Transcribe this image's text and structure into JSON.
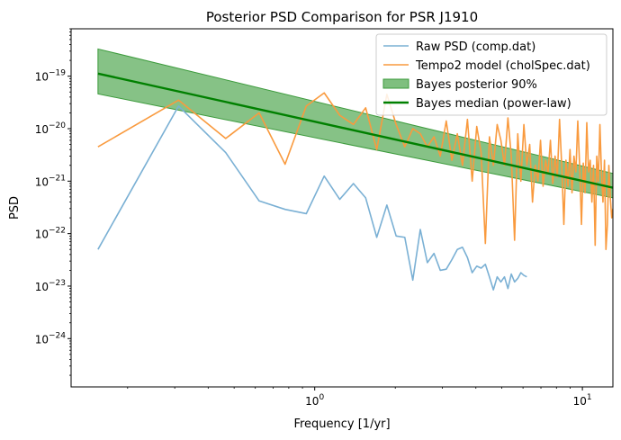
{
  "chart_data": {
    "type": "line",
    "title": "Posterior PSD Comparison for PSR J1910",
    "xlabel": "Frequency [1/yr]",
    "ylabel": "PSD",
    "xscale": "log",
    "yscale": "log",
    "xlim": [
      0.123,
      13.0
    ],
    "ylim": [
      1.2e-25,
      8e-19
    ],
    "x_ticks": [
      {
        "value": 1,
        "label": "10^0"
      },
      {
        "value": 10,
        "label": "10^1"
      }
    ],
    "y_ticks": [
      {
        "value": 1e-24,
        "label": "10^-24"
      },
      {
        "value": 1e-23,
        "label": "10^-23"
      },
      {
        "value": 1e-22,
        "label": "10^-22"
      },
      {
        "value": 1e-21,
        "label": "10^-21"
      },
      {
        "value": 1e-20,
        "label": "10^-20"
      },
      {
        "value": 1e-19,
        "label": "10^-19"
      }
    ],
    "legend": {
      "position": "top-right",
      "entries": [
        {
          "label": "Raw PSD (comp.dat)",
          "color": "#7ab0d4",
          "kind": "line"
        },
        {
          "label": "Tempo2 model (cholSpec.dat)",
          "color": "#f99a3e",
          "kind": "line"
        },
        {
          "label": "Bayes posterior 90%",
          "color": "#7fbf7f",
          "kind": "patch"
        },
        {
          "label": "Bayes median (power-law)",
          "color": "#008000",
          "kind": "line"
        }
      ]
    },
    "series": [
      {
        "name": "Raw PSD (comp.dat)",
        "color": "#7ab0d4",
        "points": [
          [
            0.155,
            5e-23
          ],
          [
            0.31,
            2.7e-20
          ],
          [
            0.465,
            3.5e-21
          ],
          [
            0.62,
            4.2e-22
          ],
          [
            0.775,
            2.9e-22
          ],
          [
            0.93,
            2.4e-22
          ],
          [
            1.085,
            1.25e-21
          ],
          [
            1.24,
            4.5e-22
          ],
          [
            1.395,
            9e-22
          ],
          [
            1.55,
            4.8e-22
          ],
          [
            1.705,
            8.5e-23
          ],
          [
            1.86,
            3.5e-22
          ],
          [
            2.015,
            9e-23
          ],
          [
            2.17,
            8.5e-23
          ],
          [
            2.325,
            1.3e-23
          ],
          [
            2.48,
            1.2e-22
          ],
          [
            2.635,
            2.8e-23
          ],
          [
            2.79,
            4.2e-23
          ],
          [
            2.945,
            2e-23
          ],
          [
            3.1,
            2.1e-23
          ],
          [
            3.255,
            3.2e-23
          ],
          [
            3.41,
            5e-23
          ],
          [
            3.565,
            5.5e-23
          ],
          [
            3.72,
            3.5e-23
          ],
          [
            3.875,
            1.8e-23
          ],
          [
            4.03,
            2.4e-23
          ],
          [
            4.185,
            2.2e-23
          ],
          [
            4.34,
            2.6e-23
          ],
          [
            4.495,
            1.5e-23
          ],
          [
            4.65,
            8.5e-24
          ],
          [
            4.805,
            1.5e-23
          ],
          [
            4.96,
            1.2e-23
          ],
          [
            5.115,
            1.5e-23
          ],
          [
            5.27,
            9e-24
          ],
          [
            5.425,
            1.7e-23
          ],
          [
            5.58,
            1.2e-23
          ],
          [
            5.735,
            1.4e-23
          ],
          [
            5.89,
            1.8e-23
          ],
          [
            6.045,
            1.6e-23
          ],
          [
            6.2,
            1.5e-23
          ]
        ]
      },
      {
        "name": "Tempo2 model (cholSpec.dat)",
        "color": "#f99a3e",
        "points": [
          [
            0.155,
            4.5e-21
          ],
          [
            0.31,
            3.5e-20
          ],
          [
            0.465,
            6.5e-21
          ],
          [
            0.62,
            2e-20
          ],
          [
            0.775,
            2.1e-21
          ],
          [
            0.93,
            2.7e-20
          ],
          [
            1.085,
            4.8e-20
          ],
          [
            1.24,
            1.8e-20
          ],
          [
            1.395,
            1.2e-20
          ],
          [
            1.55,
            2.5e-20
          ],
          [
            1.705,
            4e-21
          ],
          [
            1.86,
            4.5e-20
          ],
          [
            2.015,
            1.2e-20
          ],
          [
            2.17,
            4.5e-21
          ],
          [
            2.325,
            1e-20
          ],
          [
            2.48,
            8e-21
          ],
          [
            2.635,
            4.5e-21
          ],
          [
            2.79,
            7e-21
          ],
          [
            2.945,
            3e-21
          ],
          [
            3.1,
            1.4e-20
          ],
          [
            3.255,
            2.5e-21
          ],
          [
            3.41,
            8e-21
          ],
          [
            3.565,
            2e-21
          ],
          [
            3.72,
            1.5e-20
          ],
          [
            3.875,
            1e-21
          ],
          [
            4.03,
            1.1e-20
          ],
          [
            4.185,
            3.5e-21
          ],
          [
            4.34,
            6.5e-23
          ],
          [
            4.495,
            7e-21
          ],
          [
            4.65,
            2e-21
          ],
          [
            4.805,
            1.2e-20
          ],
          [
            4.96,
            6e-21
          ],
          [
            5.115,
            2e-21
          ],
          [
            5.27,
            1.6e-20
          ],
          [
            5.425,
            3e-21
          ],
          [
            5.58,
            7.5e-23
          ],
          [
            5.735,
            8e-21
          ],
          [
            5.89,
            1e-21
          ],
          [
            6.045,
            1.2e-20
          ],
          [
            6.2,
            2e-21
          ],
          [
            6.355,
            5e-21
          ],
          [
            6.51,
            4e-22
          ],
          [
            6.665,
            2e-21
          ],
          [
            6.82,
            1e-21
          ],
          [
            6.975,
            6e-21
          ],
          [
            7.13,
            8e-22
          ],
          [
            7.285,
            2.5e-21
          ],
          [
            7.44,
            1.4e-21
          ],
          [
            7.595,
            6e-21
          ],
          [
            7.75,
            9e-22
          ],
          [
            7.905,
            3e-21
          ],
          [
            8.06,
            1.2e-21
          ],
          [
            8.215,
            1.5e-20
          ],
          [
            8.37,
            2e-21
          ],
          [
            8.525,
            1.5e-22
          ],
          [
            8.68,
            2.5e-21
          ],
          [
            8.835,
            8e-22
          ],
          [
            8.99,
            4e-21
          ],
          [
            9.145,
            6e-22
          ],
          [
            9.3,
            3e-21
          ],
          [
            9.455,
            1.5e-21
          ],
          [
            9.61,
            1.4e-20
          ],
          [
            9.765,
            2e-21
          ],
          [
            9.92,
            1.5e-22
          ],
          [
            10.075,
            2.2e-21
          ],
          [
            10.23,
            6e-22
          ],
          [
            10.385,
            1.3e-20
          ],
          [
            10.54,
            1.5e-21
          ],
          [
            10.695,
            2.5e-21
          ],
          [
            10.85,
            4e-22
          ],
          [
            11.005,
            2e-21
          ],
          [
            11.16,
            6e-23
          ],
          [
            11.315,
            3e-21
          ],
          [
            11.47,
            1e-21
          ],
          [
            11.625,
            1.2e-20
          ],
          [
            11.78,
            1.5e-21
          ],
          [
            11.935,
            4e-22
          ],
          [
            12.09,
            2.5e-21
          ],
          [
            12.245,
            5e-23
          ],
          [
            12.4,
            1.5e-22
          ],
          [
            12.555,
            2e-21
          ],
          [
            12.71,
            5e-22
          ],
          [
            12.865,
            2e-22
          ],
          [
            13.0,
            3e-22
          ]
        ]
      },
      {
        "name": "Bayes median (power-law)",
        "color": "#008000",
        "points": [
          [
            0.155,
            1.12e-19
          ],
          [
            13.0,
            7.5e-22
          ]
        ]
      }
    ],
    "band": {
      "name": "Bayes posterior 90%",
      "color": "#7fbf7f",
      "edge_color": "#3d9b3d",
      "upper": [
        [
          0.155,
          3.3e-19
        ],
        [
          13.0,
          1.4e-21
        ]
      ],
      "lower": [
        [
          0.155,
          4.6e-20
        ],
        [
          13.0,
          4.8e-22
        ]
      ]
    }
  }
}
